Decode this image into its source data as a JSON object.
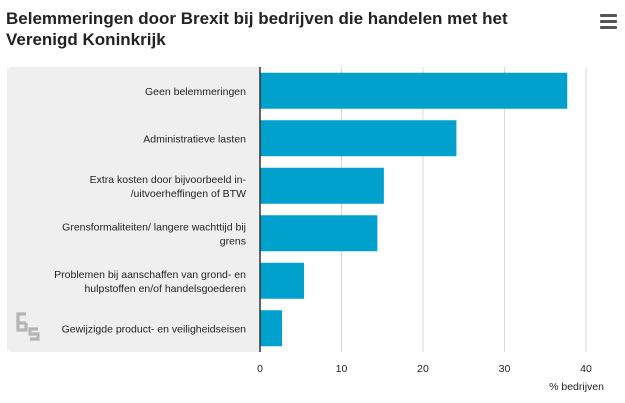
{
  "title": "Belemmeringen door Brexit bij bedrijven die handelen met het Verenigd Koninkrijk",
  "menu_icon": "hamburger-menu-icon",
  "logo_icon": "cbs-logo-icon",
  "colors": {
    "bar": "#00a1cd",
    "panel": "#efefef",
    "grid": "#d9d9d9",
    "axis": "#333333"
  },
  "chart_data": {
    "type": "bar",
    "orientation": "horizontal",
    "categories": [
      "Geen belemmeringen",
      "Administratieve lasten",
      "Extra kosten door bijvoorbeeld in-/uitvoerheffingen of BTW",
      "Grensformaliteiten/ langere wachttijd bij grens",
      "Problemen bij aanschaffen van grond- en hulpstoffen en/of handelsgoederen",
      "Gewijzigde product- en veiligheidseisen"
    ],
    "category_lines": [
      [
        "Geen belemmeringen"
      ],
      [
        "Administratieve lasten"
      ],
      [
        "Extra kosten door bijvoorbeeld in-",
        "/uitvoerheffingen of BTW"
      ],
      [
        "Grensformaliteiten/ langere wachttijd bij",
        "grens"
      ],
      [
        "Problemen bij aanschaffen van grond- en",
        "hulpstoffen en/of handelsgoederen"
      ],
      [
        "Gewijzigde product- en veiligheidseisen"
      ]
    ],
    "values": [
      37.7,
      24.1,
      15.2,
      14.4,
      5.4,
      2.7
    ],
    "xlabel": "% bedrijven",
    "xlim": [
      0,
      40
    ],
    "xticks": [
      "0",
      "10",
      "20",
      "30",
      "40"
    ],
    "grid": true
  }
}
